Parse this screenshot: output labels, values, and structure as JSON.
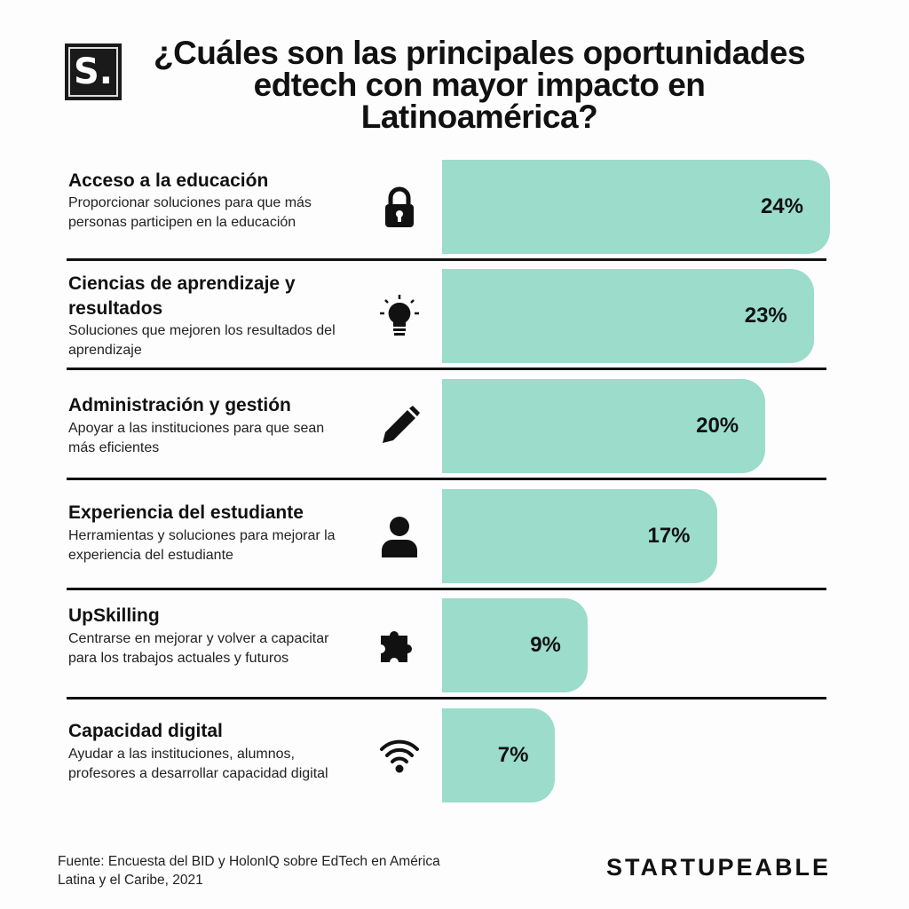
{
  "logo": {
    "text": "S."
  },
  "title_lines": [
    "¿Cuáles son las principales oportunidades",
    "edtech con mayor impacto en Latinoamérica?"
  ],
  "chart_data": {
    "type": "bar",
    "orientation": "horizontal",
    "title": "¿Cuáles son las principales oportunidades edtech con mayor impacto en Latinoamérica?",
    "categories": [
      "Acceso a la educación",
      "Ciencias de aprendizaje y resultados",
      "Administración y gestión",
      "Experiencia del estudiante",
      "UpSkilling",
      "Capacidad digital"
    ],
    "values": [
      24,
      23,
      20,
      17,
      9,
      7
    ],
    "data_labels": [
      "24%",
      "23%",
      "20%",
      "17%",
      "9%",
      "7%"
    ],
    "descriptions": [
      "Proporcionar soluciones para que más personas participen en la educación",
      "Soluciones que mejoren los resultados del aprendizaje",
      "Apoyar a las instituciones para que sean más eficientes",
      "Herramientas y soluciones para mejorar la experiencia del estudiante",
      "Centrarse en mejorar y volver a capacitar para los trabajos actuales y futuros",
      "Ayudar a las instituciones, alumnos, profesores a desarrollar capacidad digital"
    ],
    "icons": [
      "lock-icon",
      "lightbulb-icon",
      "pencil-icon",
      "user-icon",
      "puzzle-icon",
      "wifi-icon"
    ],
    "bar_color": "#9bdccb",
    "xlim": [
      0,
      24
    ],
    "grid": false
  },
  "footer": {
    "source": "Fuente: Encuesta del BID y HolonIQ sobre EdTech en América Latina y el Caribe, 2021",
    "brand": "STARTUPEABLE"
  }
}
